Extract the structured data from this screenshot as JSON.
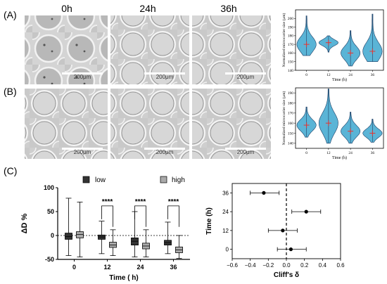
{
  "panels": {
    "a": "(A)",
    "b": "(B)",
    "c": "(C)"
  },
  "time_headers": [
    "0h",
    "24h",
    "36h"
  ],
  "scale_bar_label": "200μm",
  "chart_data": [
    {
      "id": "violin-a",
      "type": "violin",
      "xlabel": "Time (h)",
      "ylabel": "Normalized microcarrier size (μm)",
      "categories": [
        "0",
        "12",
        "24",
        "36"
      ],
      "ylim": [
        140,
        210
      ],
      "yticks": [
        140,
        150,
        160,
        170,
        180,
        190,
        200
      ],
      "medians": [
        170,
        172,
        160,
        162
      ],
      "ranges": [
        [
          157,
          203
        ],
        [
          161,
          180
        ],
        [
          145,
          186
        ],
        [
          150,
          205
        ]
      ]
    },
    {
      "id": "violin-b",
      "type": "violin",
      "xlabel": "Time (h)",
      "ylabel": "Normalized microcarrier size (μm)",
      "categories": [
        "0",
        "12",
        "24",
        "36"
      ],
      "ylim": [
        135,
        195
      ],
      "yticks": [
        140,
        150,
        160,
        170,
        180,
        190
      ],
      "medians": [
        158,
        160,
        152,
        150
      ],
      "ranges": [
        [
          146,
          176
        ],
        [
          140,
          194
        ],
        [
          140,
          171
        ],
        [
          141,
          164
        ]
      ]
    },
    {
      "id": "box-c",
      "type": "box",
      "xlabel": "Time ( h)",
      "ylabel": "ΔD %",
      "categories": [
        "0",
        "12",
        "24",
        "36"
      ],
      "ylim": [
        -50,
        100
      ],
      "yticks": [
        -50,
        0,
        50,
        100
      ],
      "legend": [
        "low",
        "high"
      ],
      "series": [
        {
          "name": "low",
          "color": "#333333",
          "boxes": [
            {
              "q1": -8,
              "med": -2,
              "q3": 5,
              "lo": -42,
              "hi": 78
            },
            {
              "q1": -8,
              "med": -3,
              "q3": 1,
              "lo": -38,
              "hi": 30
            },
            {
              "q1": -20,
              "med": -12,
              "q3": -5,
              "lo": -45,
              "hi": 50
            },
            {
              "q1": -20,
              "med": -15,
              "q3": -10,
              "lo": -38,
              "hi": 28
            }
          ]
        },
        {
          "name": "high",
          "color": "#aaaaaa",
          "boxes": [
            {
              "q1": -5,
              "med": 2,
              "q3": 8,
              "lo": -45,
              "hi": 70
            },
            {
              "q1": -25,
              "med": -20,
              "q3": -14,
              "lo": -42,
              "hi": 12
            },
            {
              "q1": -28,
              "med": -22,
              "q3": -16,
              "lo": -45,
              "hi": 12
            },
            {
              "q1": -36,
              "med": -30,
              "q3": -24,
              "lo": -48,
              "hi": 0
            }
          ]
        }
      ],
      "significance": [
        "****",
        "****",
        "****"
      ]
    },
    {
      "id": "forest-c",
      "type": "scatter",
      "xlabel": "Cliff's δ",
      "ylabel": "Time (h)",
      "xlim": [
        -0.6,
        0.6
      ],
      "xticks": [
        -0.6,
        -0.4,
        -0.2,
        0.0,
        0.2,
        0.4,
        0.6
      ],
      "xtick_labels": [
        "−0.6",
        "−0.4",
        "−0.2",
        "0.0",
        "0.2",
        "0.4",
        "0.6"
      ],
      "categories": [
        "36",
        "24",
        "12",
        "0"
      ],
      "points": [
        {
          "y": "36",
          "x": -0.25,
          "lo": -0.4,
          "hi": -0.08
        },
        {
          "y": "24",
          "x": 0.22,
          "lo": 0.06,
          "hi": 0.38
        },
        {
          "y": "12",
          "x": -0.04,
          "lo": -0.2,
          "hi": 0.12
        },
        {
          "y": "0",
          "x": 0.05,
          "lo": -0.1,
          "hi": 0.22
        }
      ]
    }
  ]
}
